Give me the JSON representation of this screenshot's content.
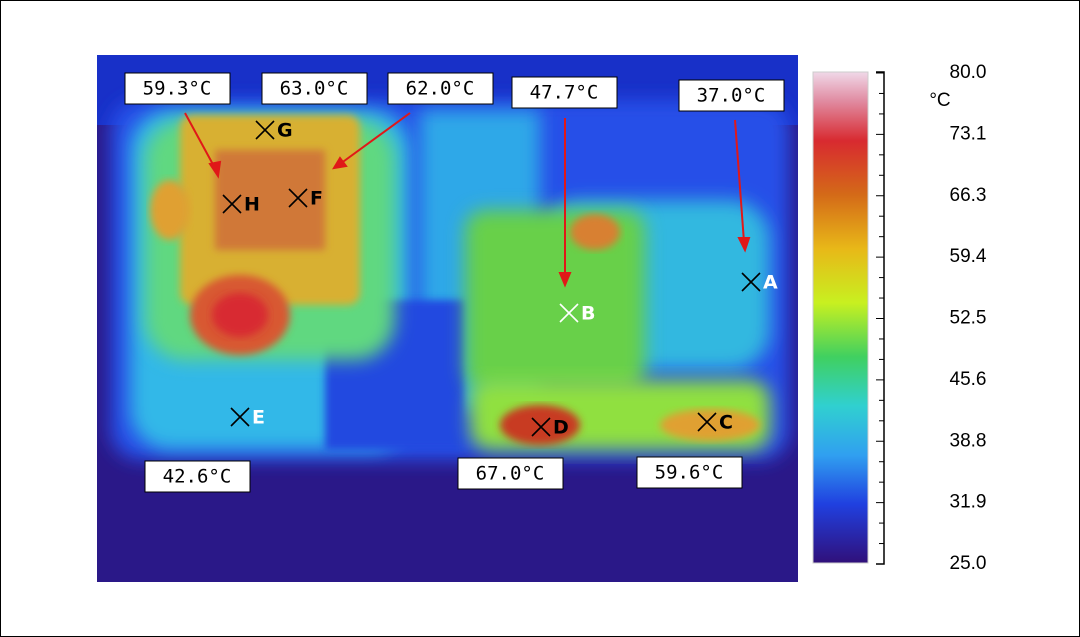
{
  "callouts": [
    "59.3°C",
    "63.0°C",
    "62.0°C",
    "47.7°C",
    "37.0°C",
    "42.6°C",
    "67.0°C",
    "59.6°C"
  ],
  "points": [
    "G",
    "H",
    "F",
    "A",
    "B",
    "E",
    "D",
    "C"
  ],
  "colorbar": {
    "unit": "°C",
    "ticks": [
      "80.0",
      "73.1",
      "66.3",
      "59.4",
      "52.5",
      "45.6",
      "38.8",
      "31.9",
      "25.0"
    ]
  }
}
